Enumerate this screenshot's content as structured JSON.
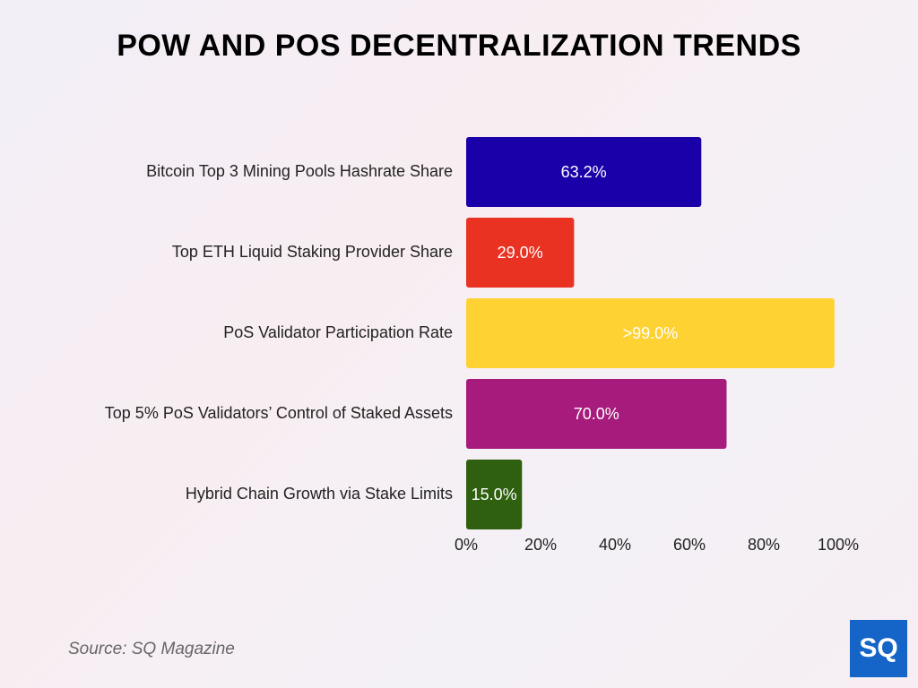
{
  "chart_data": {
    "type": "bar",
    "orientation": "horizontal",
    "title": "POW AND POS DECENTRALIZATION TRENDS",
    "categories": [
      "Bitcoin Top 3 Mining Pools Hashrate Share",
      "Top ETH Liquid Staking Provider Share",
      "PoS Validator Participation Rate",
      "Top 5% PoS Validators’ Control of Staked Assets",
      "Hybrid Chain Growth via Stake Limits"
    ],
    "values": [
      63.2,
      29.0,
      99.0,
      70.0,
      15.0
    ],
    "value_labels": [
      "63.2%",
      "29.0%",
      ">99.0%",
      "70.0%",
      "15.0%"
    ],
    "colors": [
      "#1a00a8",
      "#ea3223",
      "#ffd233",
      "#a61b7b",
      "#2e6010"
    ],
    "xlim": [
      0,
      100
    ],
    "xticks": [
      {
        "value": 0,
        "label": "0%"
      },
      {
        "value": 20,
        "label": "20%"
      },
      {
        "value": 40,
        "label": "40%"
      },
      {
        "value": 60,
        "label": "60%"
      },
      {
        "value": 80,
        "label": "80%"
      },
      {
        "value": 100,
        "label": "100%"
      }
    ],
    "grid": false,
    "source": "Source: SQ Magazine",
    "logo": "SQ"
  }
}
